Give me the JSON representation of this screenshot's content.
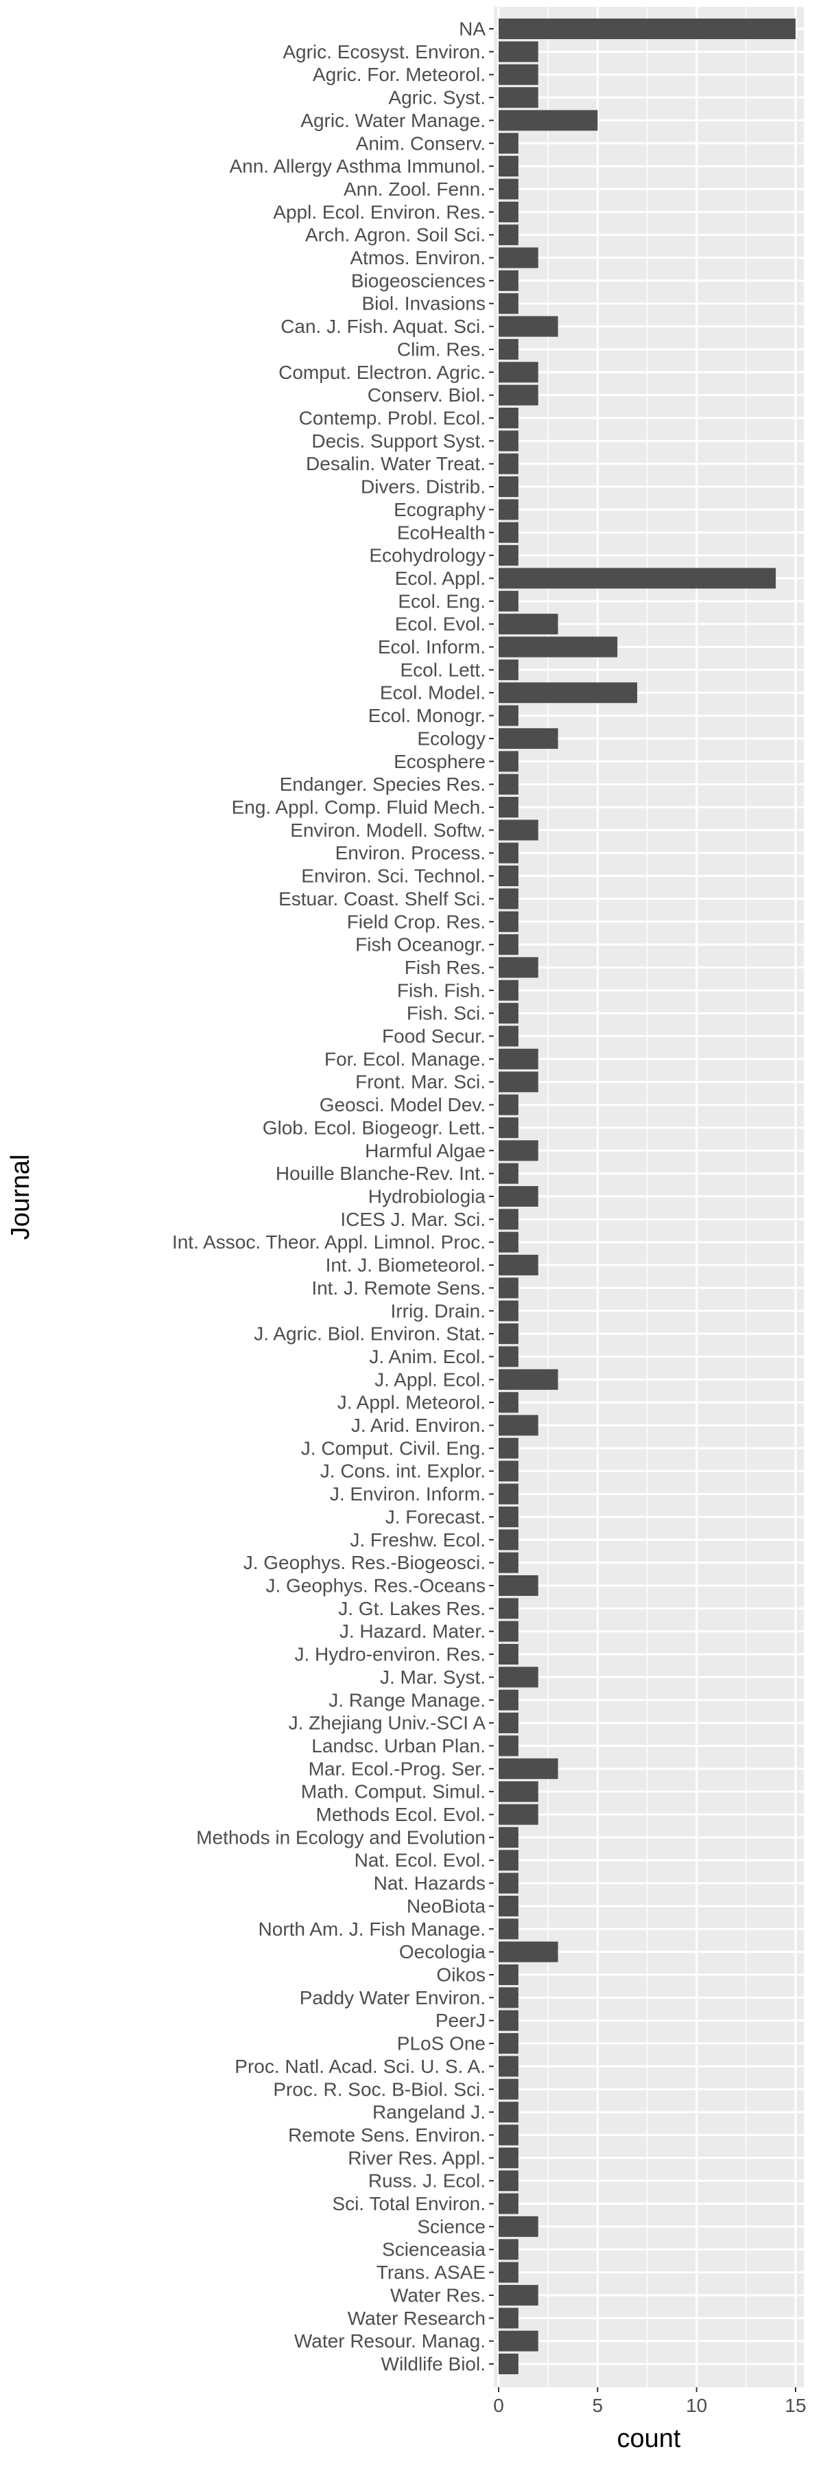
{
  "chart_data": {
    "type": "bar",
    "orientation": "horizontal",
    "xlabel": "count",
    "ylabel": "Journal",
    "xlim": [
      0,
      15.4
    ],
    "xticks": [
      0,
      5,
      10,
      15
    ],
    "grid": true,
    "colors": {
      "panel": "#EBEBEB",
      "grid": "#FFFFFF",
      "bar": "#4D4D4D",
      "tick_text": "#4D4D4D",
      "tick_mark": "#333333"
    },
    "categories": [
      "NA",
      "Agric. Ecosyst. Environ.",
      "Agric. For. Meteorol.",
      "Agric. Syst.",
      "Agric. Water Manage.",
      "Anim. Conserv.",
      "Ann. Allergy Asthma Immunol.",
      "Ann. Zool. Fenn.",
      "Appl. Ecol. Environ. Res.",
      "Arch. Agron. Soil Sci.",
      "Atmos. Environ.",
      "Biogeosciences",
      "Biol. Invasions",
      "Can. J. Fish. Aquat. Sci.",
      "Clim. Res.",
      "Comput. Electron. Agric.",
      "Conserv. Biol.",
      "Contemp. Probl. Ecol.",
      "Decis. Support Syst.",
      "Desalin. Water Treat.",
      "Divers. Distrib.",
      "Ecography",
      "EcoHealth",
      "Ecohydrology",
      "Ecol. Appl.",
      "Ecol. Eng.",
      "Ecol. Evol.",
      "Ecol. Inform.",
      "Ecol. Lett.",
      "Ecol. Model.",
      "Ecol. Monogr.",
      "Ecology",
      "Ecosphere",
      "Endanger. Species Res.",
      "Eng. Appl. Comp. Fluid Mech.",
      "Environ. Modell. Softw.",
      "Environ. Process.",
      "Environ. Sci. Technol.",
      "Estuar. Coast. Shelf Sci.",
      "Field Crop. Res.",
      "Fish Oceanogr.",
      "Fish Res.",
      "Fish. Fish.",
      "Fish. Sci.",
      "Food Secur.",
      "For. Ecol. Manage.",
      "Front. Mar. Sci.",
      "Geosci. Model Dev.",
      "Glob. Ecol. Biogeogr. Lett.",
      "Harmful Algae",
      "Houille Blanche-Rev. Int.",
      "Hydrobiologia",
      "ICES J. Mar. Sci.",
      "Int. Assoc. Theor. Appl. Limnol. Proc.",
      "Int. J. Biometeorol.",
      "Int. J. Remote Sens.",
      "Irrig. Drain.",
      "J. Agric. Biol. Environ. Stat.",
      "J. Anim. Ecol.",
      "J. Appl. Ecol.",
      "J. Appl. Meteorol.",
      "J. Arid. Environ.",
      "J. Comput. Civil. Eng.",
      "J. Cons. int. Explor.",
      "J. Environ. Inform.",
      "J. Forecast.",
      "J. Freshw. Ecol.",
      "J. Geophys. Res.-Biogeosci.",
      "J. Geophys. Res.-Oceans",
      "J. Gt. Lakes Res.",
      "J. Hazard. Mater.",
      "J. Hydro-environ. Res.",
      "J. Mar. Syst.",
      "J. Range Manage.",
      "J. Zhejiang Univ.-SCI A",
      "Landsc. Urban Plan.",
      "Mar. Ecol.-Prog. Ser.",
      "Math. Comput. Simul.",
      "Methods Ecol. Evol.",
      "Methods in Ecology and Evolution",
      "Nat. Ecol. Evol.",
      "Nat. Hazards",
      "NeoBiota",
      "North Am. J. Fish Manage.",
      "Oecologia",
      "Oikos",
      "Paddy Water Environ.",
      "PeerJ",
      "PLoS One",
      "Proc. Natl. Acad. Sci. U. S. A.",
      "Proc. R. Soc. B-Biol. Sci.",
      "Rangeland J.",
      "Remote Sens. Environ.",
      "River Res. Appl.",
      "Russ. J. Ecol.",
      "Sci. Total Environ.",
      "Science",
      "Scienceasia",
      "Trans. ASAE",
      "Water Res.",
      "Water Research",
      "Water Resour. Manag.",
      "Wildlife Biol."
    ],
    "values": [
      15,
      2,
      2,
      2,
      5,
      1,
      1,
      1,
      1,
      1,
      2,
      1,
      1,
      3,
      1,
      2,
      2,
      1,
      1,
      1,
      1,
      1,
      1,
      1,
      14,
      1,
      3,
      6,
      1,
      7,
      1,
      3,
      1,
      1,
      1,
      2,
      1,
      1,
      1,
      1,
      1,
      2,
      1,
      1,
      1,
      2,
      2,
      1,
      1,
      2,
      1,
      2,
      1,
      1,
      2,
      1,
      1,
      1,
      1,
      3,
      1,
      2,
      1,
      1,
      1,
      1,
      1,
      1,
      2,
      1,
      1,
      1,
      2,
      1,
      1,
      1,
      3,
      2,
      2,
      1,
      1,
      1,
      1,
      1,
      3,
      1,
      1,
      1,
      1,
      1,
      1,
      1,
      1,
      1,
      1,
      1,
      2,
      1,
      1,
      2,
      1,
      2,
      1
    ]
  }
}
